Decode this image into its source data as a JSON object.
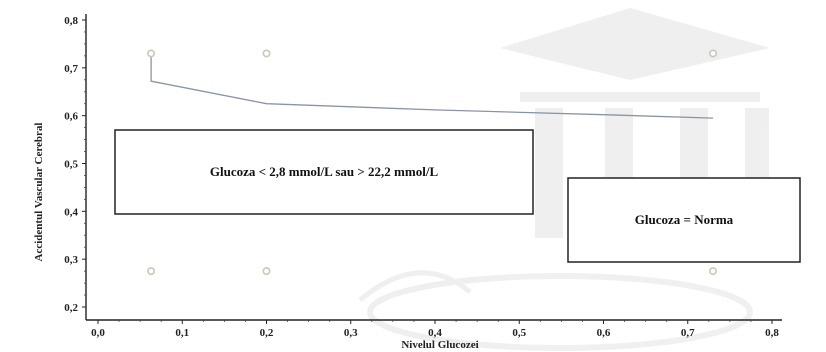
{
  "chart_data": {
    "type": "line",
    "xlabel": "Nivelul Glucozei",
    "ylabel": "Accidentul Vascular Cerebral",
    "xlim": [
      0.0,
      0.8
    ],
    "ylim": [
      0.2,
      0.8
    ],
    "x_ticks": [
      "0,0",
      "0,1",
      "0,2",
      "0,3",
      "0,4",
      "0,5",
      "0,6",
      "0,7",
      "0,8"
    ],
    "y_ticks": [
      "0,2",
      "0,3",
      "0,4",
      "0,5",
      "0,6",
      "0,7",
      "0,8"
    ],
    "x_tick_values": [
      0.0,
      0.1,
      0.2,
      0.3,
      0.4,
      0.5,
      0.6,
      0.7,
      0.8
    ],
    "y_tick_values": [
      0.2,
      0.3,
      0.4,
      0.5,
      0.6,
      0.7,
      0.8
    ],
    "grid": false,
    "series": [
      {
        "points": [
          {
            "x": 0.063,
            "y": 0.728
          },
          {
            "x": 0.063,
            "y": 0.672
          },
          {
            "x": 0.2,
            "y": 0.625
          },
          {
            "x": 0.4,
            "y": 0.612
          },
          {
            "x": 0.6,
            "y": 0.602
          },
          {
            "x": 0.73,
            "y": 0.595
          }
        ],
        "color": "#8a94a8"
      }
    ],
    "markers": [
      {
        "x": 0.063,
        "y": 0.73
      },
      {
        "x": 0.2,
        "y": 0.73
      },
      {
        "x": 0.73,
        "y": 0.73
      },
      {
        "x": 0.063,
        "y": 0.275
      },
      {
        "x": 0.2,
        "y": 0.275
      },
      {
        "x": 0.73,
        "y": 0.275
      }
    ],
    "marker_color": "#c9c9b8",
    "annotations": [
      {
        "text": "Glucoza < 2,8 mmol/L sau > 22,2 mmol/L"
      },
      {
        "text": "Glucoza = Norma"
      }
    ]
  }
}
